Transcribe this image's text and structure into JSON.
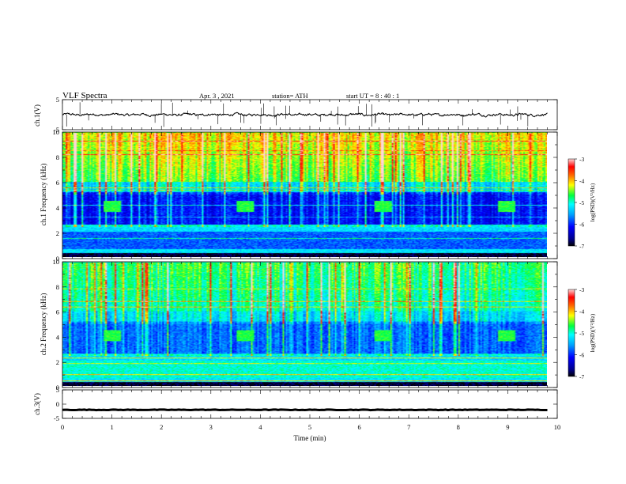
{
  "header": {
    "title": "VLF  Spectra",
    "date": "Apr. 3  , 2021",
    "station": "station= ATH",
    "start": "start  UT  =   8  : 40 : 1"
  },
  "colorbar": {
    "label": "log(PSD)(V²/Hz)",
    "ticks": [
      "-3",
      "-4",
      "-5",
      "-6",
      "-7"
    ]
  },
  "chart_data": [
    {
      "type": "line",
      "name": "ch1-waveform",
      "ylabel": "ch.1(V)",
      "ylim": [
        -5,
        5
      ],
      "yticks": [
        "5",
        "-5"
      ],
      "xlim": [
        0,
        10
      ],
      "baseline": 0,
      "amplitude": 0.6
    },
    {
      "type": "heatmap",
      "name": "ch1-spectrogram",
      "ylabel": "ch.1 Frequency (kHz)",
      "ylim": [
        0,
        10
      ],
      "yticks": [
        "0",
        "2",
        "4",
        "6",
        "8",
        "10"
      ],
      "xlim": [
        0,
        10
      ],
      "zlim": [
        -7,
        -3
      ],
      "bursts": [
        1.0,
        3.7,
        6.5,
        9.0
      ]
    },
    {
      "type": "heatmap",
      "name": "ch2-spectrogram",
      "ylabel": "ch.2 Frequency (kHz)",
      "ylim": [
        0,
        10
      ],
      "yticks": [
        "0",
        "2",
        "4",
        "6",
        "8",
        "10"
      ],
      "xlim": [
        0,
        10
      ],
      "zlim": [
        -7,
        -3
      ],
      "bursts": [
        1.0,
        3.7,
        6.5,
        9.0
      ]
    },
    {
      "type": "line",
      "name": "ch3-waveform",
      "ylabel": "ch.3(V)",
      "ylim": [
        -5,
        5
      ],
      "yticks": [
        "5",
        "0",
        "-5"
      ],
      "xlim": [
        0,
        10
      ],
      "baseline": -2,
      "amplitude": 0.2,
      "xlabel": "Time  (min)",
      "xticks": [
        "0",
        "1",
        "2",
        "3",
        "4",
        "5",
        "6",
        "7",
        "8",
        "9",
        "10"
      ]
    }
  ]
}
